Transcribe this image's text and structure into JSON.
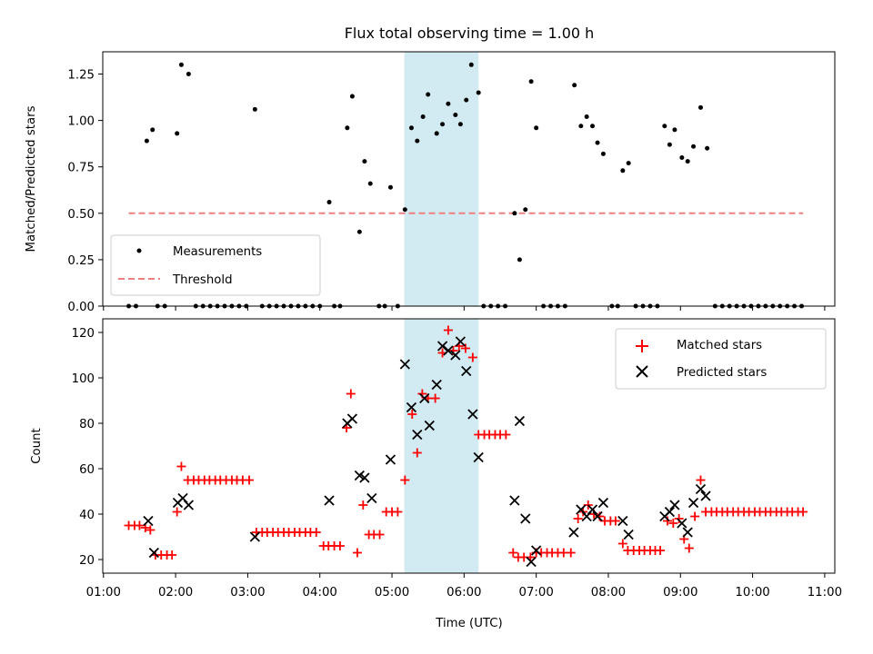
{
  "figure": {
    "title": "Flux total observing time = 1.00 h",
    "xlabel": "Time (UTC)",
    "x_ticks": [
      "01:00",
      "02:00",
      "03:00",
      "04:00",
      "05:00",
      "06:00",
      "07:00",
      "08:00",
      "09:00",
      "10:00",
      "11:00"
    ],
    "x_range_hours": [
      0.99,
      11.14
    ],
    "highlight_band_hours": [
      5.17,
      6.2
    ],
    "highlight_color": "#add8e6"
  },
  "chart_data": [
    {
      "type": "scatter",
      "ylabel": "Matched/Predicted stars",
      "ylim": [
        0,
        1.37
      ],
      "y_ticks": [
        "0.00",
        "0.25",
        "0.50",
        "0.75",
        "1.00",
        "1.25"
      ],
      "legend_position": "lower-left",
      "threshold": {
        "name": "Threshold",
        "value": 0.5,
        "x_range": [
          1.35,
          10.7
        ],
        "color": "#f08080"
      },
      "series": [
        {
          "name": "Measurements",
          "color": "#000000",
          "points": [
            [
              1.35,
              0
            ],
            [
              1.45,
              0
            ],
            [
              1.6,
              0.89
            ],
            [
              1.68,
              0.95
            ],
            [
              1.75,
              0
            ],
            [
              1.85,
              0
            ],
            [
              2.02,
              0.93
            ],
            [
              2.08,
              1.3
            ],
            [
              2.18,
              1.25
            ],
            [
              2.28,
              0
            ],
            [
              2.38,
              0
            ],
            [
              2.48,
              0
            ],
            [
              2.58,
              0
            ],
            [
              2.68,
              0
            ],
            [
              2.78,
              0
            ],
            [
              2.88,
              0
            ],
            [
              2.98,
              0
            ],
            [
              3.1,
              1.06
            ],
            [
              3.2,
              0
            ],
            [
              3.3,
              0
            ],
            [
              3.4,
              0
            ],
            [
              3.5,
              0
            ],
            [
              3.6,
              0
            ],
            [
              3.7,
              0
            ],
            [
              3.8,
              0
            ],
            [
              3.9,
              0
            ],
            [
              4.0,
              0
            ],
            [
              4.13,
              0.56
            ],
            [
              4.2,
              0
            ],
            [
              4.28,
              0
            ],
            [
              4.38,
              0.96
            ],
            [
              4.45,
              1.13
            ],
            [
              4.55,
              0.4
            ],
            [
              4.62,
              0.78
            ],
            [
              4.7,
              0.66
            ],
            [
              4.82,
              0
            ],
            [
              4.9,
              0
            ],
            [
              4.98,
              0.64
            ],
            [
              5.08,
              0
            ],
            [
              5.18,
              0.52
            ],
            [
              5.27,
              0.96
            ],
            [
              5.35,
              0.89
            ],
            [
              5.43,
              1.02
            ],
            [
              5.5,
              1.14
            ],
            [
              5.62,
              0.93
            ],
            [
              5.7,
              0.98
            ],
            [
              5.78,
              1.09
            ],
            [
              5.88,
              1.03
            ],
            [
              5.95,
              0.98
            ],
            [
              6.03,
              1.11
            ],
            [
              6.1,
              1.3
            ],
            [
              6.2,
              1.15
            ],
            [
              6.27,
              0
            ],
            [
              6.37,
              0
            ],
            [
              6.47,
              0
            ],
            [
              6.57,
              0
            ],
            [
              6.7,
              0.5
            ],
            [
              6.77,
              0.25
            ],
            [
              6.85,
              0.52
            ],
            [
              6.93,
              1.21
            ],
            [
              7.0,
              0.96
            ],
            [
              7.1,
              0
            ],
            [
              7.2,
              0
            ],
            [
              7.3,
              0
            ],
            [
              7.4,
              0
            ],
            [
              7.53,
              1.19
            ],
            [
              7.62,
              0.97
            ],
            [
              7.7,
              1.02
            ],
            [
              7.78,
              0.97
            ],
            [
              7.85,
              0.88
            ],
            [
              7.93,
              0.82
            ],
            [
              8.05,
              0
            ],
            [
              8.13,
              0
            ],
            [
              8.2,
              0.73
            ],
            [
              8.28,
              0.77
            ],
            [
              8.38,
              0
            ],
            [
              8.48,
              0
            ],
            [
              8.58,
              0
            ],
            [
              8.68,
              0
            ],
            [
              8.78,
              0.97
            ],
            [
              8.85,
              0.87
            ],
            [
              8.92,
              0.95
            ],
            [
              9.02,
              0.8
            ],
            [
              9.1,
              0.78
            ],
            [
              9.18,
              0.86
            ],
            [
              9.28,
              1.07
            ],
            [
              9.37,
              0.85
            ],
            [
              9.48,
              0
            ],
            [
              9.58,
              0
            ],
            [
              9.68,
              0
            ],
            [
              9.78,
              0
            ],
            [
              9.88,
              0
            ],
            [
              9.98,
              0
            ],
            [
              10.08,
              0
            ],
            [
              10.18,
              0
            ],
            [
              10.28,
              0
            ],
            [
              10.38,
              0
            ],
            [
              10.48,
              0
            ],
            [
              10.58,
              0
            ],
            [
              10.68,
              0
            ]
          ]
        }
      ]
    },
    {
      "type": "scatter",
      "ylabel": "Count",
      "ylim": [
        14,
        126
      ],
      "y_ticks": [
        "20",
        "40",
        "60",
        "80",
        "100",
        "120"
      ],
      "legend_position": "top-right",
      "series": [
        {
          "name": "Matched stars",
          "color": "#ff0000",
          "marker": "+",
          "points": [
            [
              1.35,
              35
            ],
            [
              1.43,
              35
            ],
            [
              1.5,
              35
            ],
            [
              1.58,
              34
            ],
            [
              1.65,
              33
            ],
            [
              1.72,
              22
            ],
            [
              1.8,
              22
            ],
            [
              1.88,
              22
            ],
            [
              1.95,
              22
            ],
            [
              2.02,
              41
            ],
            [
              2.08,
              61
            ],
            [
              2.17,
              55
            ],
            [
              2.25,
              55
            ],
            [
              2.32,
              55
            ],
            [
              2.4,
              55
            ],
            [
              2.47,
              55
            ],
            [
              2.55,
              55
            ],
            [
              2.62,
              55
            ],
            [
              2.7,
              55
            ],
            [
              2.78,
              55
            ],
            [
              2.85,
              55
            ],
            [
              2.93,
              55
            ],
            [
              3.02,
              55
            ],
            [
              3.12,
              32
            ],
            [
              3.2,
              32
            ],
            [
              3.27,
              32
            ],
            [
              3.35,
              32
            ],
            [
              3.42,
              32
            ],
            [
              3.5,
              32
            ],
            [
              3.57,
              32
            ],
            [
              3.65,
              32
            ],
            [
              3.72,
              32
            ],
            [
              3.8,
              32
            ],
            [
              3.87,
              32
            ],
            [
              3.95,
              32
            ],
            [
              4.05,
              26
            ],
            [
              4.12,
              26
            ],
            [
              4.2,
              26
            ],
            [
              4.28,
              26
            ],
            [
              4.37,
              78
            ],
            [
              4.43,
              93
            ],
            [
              4.52,
              23
            ],
            [
              4.6,
              44
            ],
            [
              4.68,
              31
            ],
            [
              4.75,
              31
            ],
            [
              4.83,
              31
            ],
            [
              4.92,
              41
            ],
            [
              5.0,
              41
            ],
            [
              5.08,
              41
            ],
            [
              5.18,
              55
            ],
            [
              5.28,
              84
            ],
            [
              5.35,
              67
            ],
            [
              5.42,
              93
            ],
            [
              5.5,
              91
            ],
            [
              5.6,
              91
            ],
            [
              5.7,
              111
            ],
            [
              5.78,
              121
            ],
            [
              5.85,
              112
            ],
            [
              5.93,
              114
            ],
            [
              6.02,
              113
            ],
            [
              6.12,
              109
            ],
            [
              6.2,
              75
            ],
            [
              6.28,
              75
            ],
            [
              6.35,
              75
            ],
            [
              6.43,
              75
            ],
            [
              6.5,
              75
            ],
            [
              6.58,
              75
            ],
            [
              6.68,
              23
            ],
            [
              6.75,
              21
            ],
            [
              6.83,
              21
            ],
            [
              6.92,
              21
            ],
            [
              7.0,
              23
            ],
            [
              7.07,
              23
            ],
            [
              7.15,
              23
            ],
            [
              7.22,
              23
            ],
            [
              7.3,
              23
            ],
            [
              7.38,
              23
            ],
            [
              7.48,
              23
            ],
            [
              7.58,
              38
            ],
            [
              7.65,
              41
            ],
            [
              7.72,
              44
            ],
            [
              7.8,
              40
            ],
            [
              7.88,
              39
            ],
            [
              7.95,
              37
            ],
            [
              8.03,
              37
            ],
            [
              8.1,
              37
            ],
            [
              8.2,
              27
            ],
            [
              8.27,
              24
            ],
            [
              8.35,
              24
            ],
            [
              8.43,
              24
            ],
            [
              8.5,
              24
            ],
            [
              8.58,
              24
            ],
            [
              8.65,
              24
            ],
            [
              8.72,
              24
            ],
            [
              8.82,
              37
            ],
            [
              8.9,
              36
            ],
            [
              8.98,
              38
            ],
            [
              9.05,
              29
            ],
            [
              9.12,
              25
            ],
            [
              9.2,
              39
            ],
            [
              9.28,
              55
            ],
            [
              9.35,
              41
            ],
            [
              9.43,
              41
            ],
            [
              9.5,
              41
            ],
            [
              9.58,
              41
            ],
            [
              9.65,
              41
            ],
            [
              9.73,
              41
            ],
            [
              9.8,
              41
            ],
            [
              9.88,
              41
            ],
            [
              9.95,
              41
            ],
            [
              10.03,
              41
            ],
            [
              10.1,
              41
            ],
            [
              10.18,
              41
            ],
            [
              10.25,
              41
            ],
            [
              10.33,
              41
            ],
            [
              10.4,
              41
            ],
            [
              10.48,
              41
            ],
            [
              10.55,
              41
            ],
            [
              10.63,
              41
            ],
            [
              10.7,
              41
            ]
          ]
        },
        {
          "name": "Predicted stars",
          "color": "#000000",
          "marker": "x",
          "points": [
            [
              1.62,
              37
            ],
            [
              1.7,
              23
            ],
            [
              2.03,
              45
            ],
            [
              2.1,
              47
            ],
            [
              2.18,
              44
            ],
            [
              3.1,
              30
            ],
            [
              4.13,
              46
            ],
            [
              4.38,
              80
            ],
            [
              4.45,
              82
            ],
            [
              4.55,
              57
            ],
            [
              4.62,
              56
            ],
            [
              4.72,
              47
            ],
            [
              4.98,
              64
            ],
            [
              5.18,
              106
            ],
            [
              5.27,
              87
            ],
            [
              5.35,
              75
            ],
            [
              5.45,
              91
            ],
            [
              5.52,
              79
            ],
            [
              5.62,
              97
            ],
            [
              5.7,
              114
            ],
            [
              5.78,
              112
            ],
            [
              5.88,
              110
            ],
            [
              5.95,
              116
            ],
            [
              6.03,
              103
            ],
            [
              6.12,
              84
            ],
            [
              6.2,
              65
            ],
            [
              6.7,
              46
            ],
            [
              6.77,
              81
            ],
            [
              6.85,
              38
            ],
            [
              6.93,
              19
            ],
            [
              7.0,
              24
            ],
            [
              7.52,
              32
            ],
            [
              7.62,
              42
            ],
            [
              7.7,
              39
            ],
            [
              7.78,
              42
            ],
            [
              7.85,
              39
            ],
            [
              7.93,
              45
            ],
            [
              8.2,
              37
            ],
            [
              8.28,
              31
            ],
            [
              8.78,
              39
            ],
            [
              8.85,
              41
            ],
            [
              8.92,
              44
            ],
            [
              9.02,
              36
            ],
            [
              9.1,
              32
            ],
            [
              9.18,
              45
            ],
            [
              9.28,
              51
            ],
            [
              9.35,
              48
            ]
          ]
        }
      ]
    }
  ]
}
